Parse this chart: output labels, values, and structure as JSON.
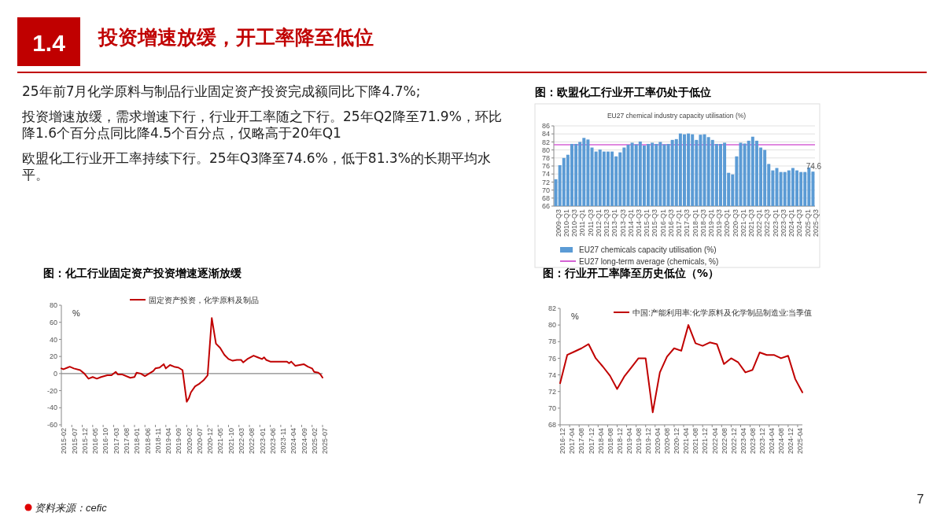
{
  "chart_data": [
    {
      "type": "other",
      "title": "投资增速放缓，开工率降至低位",
      "annotations": [
        "1.4",
        "25年前7月化学原料与制品行业固定资产投资完成额同比下降4.7%;",
        "投资增速放缓，需求增速下行，行业开工率随之下行。25年Q2降至71.9%，环比降1.6个百分点同比降4.5个百分点，仅略高于20年Q1",
        "欧盟化工行业开工率持续下行。25年Q3降至74.6%，低于81.3%的长期平均水平。",
        "资料来源：cefic",
        "7"
      ]
    },
    {
      "type": "line",
      "title": "图：化工行业固定资产投资增速逐渐放缓",
      "ylabel": "%",
      "legend": "top",
      "x": [
        "2015-02",
        "2015-03",
        "2015-05",
        "2015-06",
        "2015-08",
        "2015-11",
        "2016-01",
        "2016-03",
        "2016-05",
        "2016-07",
        "2016-09",
        "2016-12",
        "2017-02",
        "2017-04",
        "2017-05",
        "2017-07",
        "2017-11",
        "2018-01",
        "2018-02",
        "2018-04",
        "2018-06",
        "2018-08",
        "2018-10",
        "2018-11",
        "2019-01",
        "2019-03",
        "2019-04",
        "2019-06",
        "2019-08",
        "2019-10",
        "2019-12",
        "2020-02",
        "2020-03",
        "2020-04",
        "2020-06",
        "2020-08",
        "2020-10",
        "2020-12",
        "2021-02",
        "2021-04",
        "2021-06",
        "2021-08",
        "2021-10",
        "2021-12",
        "2022-02",
        "2022-04",
        "2022-05",
        "2022-07",
        "2022-10",
        "2022-12",
        "2023-02",
        "2023-03",
        "2023-04",
        "2023-06",
        "2023-10",
        "2024-02",
        "2024-03",
        "2024-04",
        "2024-06",
        "2024-08",
        "2024-10",
        "2024-12",
        "2025-02",
        "2025-03",
        "2025-05",
        "2025-06",
        "2025-07"
      ],
      "series": [
        {
          "name": "固定资产投资，化学原料及制品",
          "color": "#c00000",
          "values": [
            6,
            5,
            7,
            8,
            6,
            4,
            0,
            -6,
            -4,
            -6,
            -4,
            -2,
            -2,
            2,
            -1,
            -1,
            -5,
            -4,
            1,
            0,
            -3,
            0,
            3,
            6,
            7,
            11,
            6,
            10,
            8,
            7,
            4,
            -33,
            -29,
            -22,
            -15,
            -12,
            -8,
            -2,
            65,
            35,
            30,
            22,
            17,
            15,
            16,
            16,
            13,
            17,
            21,
            19,
            17,
            19,
            16,
            14,
            14,
            14,
            12,
            14,
            9,
            10,
            11,
            8,
            6,
            2,
            1,
            -1,
            -4.7
          ]
        }
      ],
      "xlim": [
        "2015-02",
        "2025-07"
      ],
      "xticks": [
        "2015-02",
        "2015-07",
        "2015-12",
        "2016-05",
        "2016-10",
        "2017-03",
        "2017-08",
        "2018-01",
        "2018-06",
        "2018-11",
        "2019-04",
        "2019-09",
        "2020-02",
        "2020-07",
        "2020-12",
        "2021-05",
        "2021-10",
        "2022-03",
        "2022-08",
        "2023-01",
        "2023-06",
        "2023-11",
        "2024-04",
        "2024-09",
        "2025-02",
        "2025-07"
      ],
      "ylim": [
        -60,
        80
      ],
      "yticks": [
        -60,
        -40,
        -20,
        0,
        20,
        40,
        60,
        80
      ]
    },
    {
      "type": "bar",
      "title": "图：欧盟化工行业开工率仍处于低位",
      "subtitle": "EU27 chemical industry capacity utilisation (%)",
      "grid": "y",
      "legend": "bottom",
      "categories": [
        "2009-Q3",
        null,
        "2010-Q1",
        null,
        "2010-Q3",
        null,
        "2011-Q1",
        null,
        "2011-Q3",
        null,
        "2012-Q1",
        null,
        "2012-Q3",
        null,
        "2013-Q1",
        null,
        "2013-Q3",
        null,
        "2014-Q1",
        null,
        "2014-Q3",
        null,
        "2015-Q1",
        null,
        "2015-Q3",
        null,
        "2016-Q1",
        null,
        "2016-Q3",
        null,
        "2017-Q1",
        null,
        "2017-Q3",
        null,
        "2018-Q1",
        null,
        "2018-Q3",
        null,
        "2019-Q1",
        null,
        "2019-Q3",
        null,
        "2020-Q1",
        null,
        "2020-Q3",
        null,
        "2021-Q1",
        null,
        "2021-Q3",
        null,
        "2022-Q1",
        null,
        "2022-Q3",
        null,
        "2023-Q1",
        null,
        "2023-Q3",
        null,
        "2024-Q1",
        null,
        "2024-Q3",
        null,
        "2025-Q1",
        null,
        "2025-Q3"
      ],
      "series": [
        {
          "name": "EU27 chemicals capacity utilisation (%)",
          "color": "#5b9bd5",
          "values": [
            72.7,
            76.2,
            78,
            78.8,
            81.5,
            81.5,
            82,
            83,
            82.6,
            80.6,
            79.6,
            80.1,
            79.6,
            79.6,
            79.6,
            78.4,
            79.4,
            80.6,
            81.3,
            81.8,
            81.4,
            82.1,
            81.1,
            81.5,
            81.8,
            81.5,
            82,
            81.4,
            81.5,
            82.5,
            82.7,
            84.1,
            83.9,
            84.1,
            83.9,
            82.5,
            83.8,
            83.9,
            83.2,
            82.5,
            81.5,
            81.5,
            81.8,
            74.3,
            73.9,
            78.4,
            81.8,
            81.6,
            82.3,
            83.3,
            82.3,
            80.6,
            80,
            76.5,
            74.9,
            75.5,
            74.5,
            74.5,
            74.9,
            75.5,
            74.9,
            74.5,
            74.5,
            75.6,
            74.6
          ],
          "value_labels": [
            null,
            null,
            null,
            null,
            null,
            null,
            null,
            null,
            null,
            null,
            null,
            null,
            null,
            null,
            null,
            null,
            null,
            null,
            null,
            null,
            null,
            null,
            null,
            null,
            null,
            null,
            null,
            null,
            null,
            null,
            null,
            null,
            null,
            null,
            null,
            null,
            null,
            null,
            null,
            null,
            null,
            null,
            null,
            null,
            null,
            null,
            null,
            null,
            null,
            null,
            null,
            null,
            null,
            null,
            null,
            null,
            null,
            null,
            null,
            null,
            null,
            null,
            null,
            null,
            "74.6"
          ]
        }
      ],
      "ref_lines": [
        {
          "axis": "y",
          "value": 81.3,
          "label": "EU27 long-term average (chemicals, %)",
          "color": "#d462d4"
        }
      ],
      "ylim": [
        66,
        86
      ],
      "yticks": [
        66,
        68,
        70,
        72,
        74,
        76,
        78,
        80,
        82,
        84,
        86
      ]
    },
    {
      "type": "line",
      "title": "图：行业开工率降至历史低位（%）",
      "ylabel": "%",
      "legend": "top",
      "x": [
        "2016-12",
        "2017-03",
        "2017-06",
        "2017-09",
        "2017-12",
        "2018-03",
        "2018-06",
        "2018-09",
        "2018-12",
        "2019-03",
        "2019-06",
        "2019-09",
        "2019-12",
        "2020-03",
        "2020-06",
        "2020-09",
        "2020-12",
        "2021-03",
        "2021-06",
        "2021-09",
        "2021-12",
        "2022-03",
        "2022-06",
        "2022-09",
        "2022-12",
        "2023-03",
        "2023-06",
        "2023-09",
        "2023-12",
        "2024-03",
        "2024-06",
        "2024-09",
        "2024-12",
        "2025-03",
        "2025-06"
      ],
      "series": [
        {
          "name": "中国:产能利用率:化学原料及化学制品制造业:当季值",
          "color": "#c00000",
          "values": [
            73,
            76.4,
            76.8,
            77.2,
            77.7,
            76,
            75,
            73.9,
            72.3,
            73.8,
            74.9,
            76,
            76,
            69.5,
            74.3,
            76.2,
            77.2,
            76.9,
            80,
            77.8,
            77.5,
            77.9,
            77.7,
            75.3,
            76,
            75.5,
            74.3,
            74.6,
            76.7,
            76.4,
            76.4,
            76,
            76.3,
            73.5,
            71.9
          ]
        }
      ],
      "xlim": [
        "2016-12",
        "2025-06"
      ],
      "xticks": [
        "2016-12",
        "2017-04",
        "2017-08",
        "2017-12",
        "2018-04",
        "2018-08",
        "2018-12",
        "2019-04",
        "2019-08",
        "2019-12",
        "2020-04",
        "2020-08",
        "2020-12",
        "2021-04",
        "2021-08",
        "2021-12",
        "2022-04",
        "2022-08",
        "2022-12",
        "2023-04",
        "2023-08",
        "2023-12",
        "2024-04",
        "2024-08",
        "2024-12",
        "2025-04"
      ],
      "ylim": [
        68,
        82
      ],
      "yticks": [
        68,
        70,
        72,
        74,
        76,
        78,
        80,
        82
      ]
    }
  ]
}
